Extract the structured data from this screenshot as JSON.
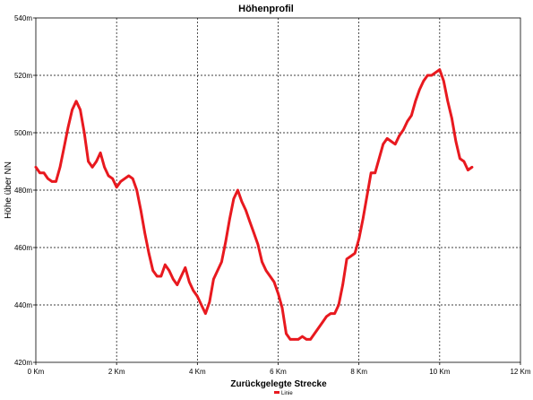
{
  "chart_data": {
    "type": "line",
    "title": "Höhenprofil",
    "xlabel": "Zurückgelegte Strecke",
    "ylabel": "Höhe über NN",
    "xlim": [
      0,
      12
    ],
    "ylim": [
      420,
      540
    ],
    "x_ticks": [
      0,
      2,
      4,
      6,
      8,
      10,
      12
    ],
    "x_tick_labels": [
      "0 Km",
      "2 Km",
      "4 Km",
      "6 Km",
      "8 Km",
      "10 Km",
      "12 Km"
    ],
    "y_ticks": [
      420,
      440,
      460,
      480,
      500,
      520,
      540
    ],
    "y_tick_labels": [
      "420m",
      "440m",
      "460m",
      "480m",
      "500m",
      "520m",
      "540m"
    ],
    "grid": true,
    "legend": "bottom-center",
    "series": [
      {
        "name": "Linie",
        "color": "#e8191f",
        "x": [
          0.0,
          0.1,
          0.2,
          0.3,
          0.4,
          0.5,
          0.6,
          0.7,
          0.8,
          0.9,
          1.0,
          1.1,
          1.2,
          1.3,
          1.4,
          1.5,
          1.6,
          1.7,
          1.8,
          1.9,
          2.0,
          2.1,
          2.2,
          2.3,
          2.4,
          2.5,
          2.6,
          2.7,
          2.8,
          2.9,
          3.0,
          3.1,
          3.2,
          3.3,
          3.4,
          3.5,
          3.6,
          3.7,
          3.8,
          3.9,
          4.0,
          4.1,
          4.2,
          4.3,
          4.4,
          4.5,
          4.6,
          4.7,
          4.8,
          4.9,
          5.0,
          5.1,
          5.2,
          5.3,
          5.4,
          5.5,
          5.6,
          5.7,
          5.8,
          5.9,
          6.0,
          6.1,
          6.2,
          6.3,
          6.4,
          6.5,
          6.6,
          6.7,
          6.8,
          6.9,
          7.0,
          7.1,
          7.2,
          7.3,
          7.4,
          7.5,
          7.6,
          7.7,
          7.8,
          7.9,
          8.0,
          8.1,
          8.2,
          8.3,
          8.4,
          8.5,
          8.6,
          8.7,
          8.8,
          8.9,
          9.0,
          9.1,
          9.2,
          9.3,
          9.4,
          9.5,
          9.6,
          9.7,
          9.8,
          9.9,
          10.0,
          10.1,
          10.2,
          10.3,
          10.4,
          10.5,
          10.6,
          10.7,
          10.8
        ],
        "y": [
          488,
          486,
          486,
          484,
          483,
          483,
          488,
          495,
          502,
          508,
          511,
          508,
          500,
          490,
          488,
          490,
          493,
          488,
          485,
          484,
          481,
          483,
          484,
          485,
          484,
          480,
          473,
          465,
          458,
          452,
          450,
          450,
          454,
          452,
          449,
          447,
          450,
          453,
          448,
          445,
          443,
          440,
          437,
          441,
          449,
          452,
          455,
          462,
          470,
          477,
          480,
          476,
          473,
          469,
          465,
          461,
          455,
          452,
          450,
          448,
          444,
          439,
          430,
          428,
          428,
          428,
          429,
          428,
          428,
          430,
          432,
          434,
          436,
          437,
          437,
          440,
          447,
          456,
          457,
          458,
          463,
          470,
          478,
          486,
          486,
          491,
          496,
          498,
          497,
          496,
          499,
          501,
          504,
          506,
          511,
          515,
          518,
          520,
          520,
          521,
          522,
          518,
          511,
          505,
          497,
          491,
          490,
          487,
          488
        ]
      }
    ]
  }
}
